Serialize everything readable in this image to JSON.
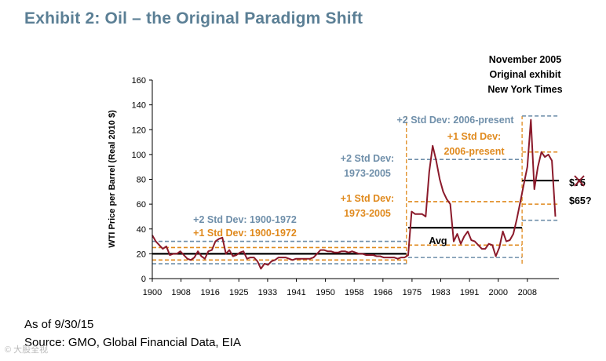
{
  "header": {
    "title": "Exhibit 2: Oil – the Original Paradigm Shift"
  },
  "footer": {
    "as_of": "As of 9/30/15",
    "source": "Source: GMO, Global Financial Data, EIA",
    "watermark": "© 大股全视"
  },
  "chart_data": {
    "type": "line",
    "title": "Exhibit 2: Oil – the Original Paradigm Shift",
    "xlabel": "",
    "ylabel": "WTI Price per Barrel (Real 2010 $)",
    "xlim": [
      1900,
      2016
    ],
    "ylim": [
      0,
      160
    ],
    "yticks": [
      0,
      20,
      40,
      60,
      80,
      100,
      120,
      140,
      160
    ],
    "xticks": [
      "1900",
      "1908",
      "1916",
      "1925",
      "1933",
      "1941",
      "1950",
      "1958",
      "1966",
      "1975",
      "1983",
      "1991",
      "2000",
      "2008"
    ],
    "xtick_years": [
      1900,
      1908.2,
      1916.5,
      1924.7,
      1932.9,
      1941.1,
      1949.4,
      1957.6,
      1965.8,
      1974.1,
      1982.3,
      1990.5,
      1998.7,
      2007
    ],
    "series": [
      {
        "name": "WTI real price",
        "color": "#8b1a2b",
        "x": [
          1900,
          1901,
          1902,
          1903,
          1904,
          1905,
          1906,
          1907,
          1908,
          1909,
          1910,
          1911,
          1912,
          1913,
          1914,
          1915,
          1916,
          1917,
          1918,
          1919,
          1920,
          1921,
          1922,
          1923,
          1924,
          1925,
          1926,
          1927,
          1928,
          1929,
          1930,
          1931,
          1932,
          1933,
          1934,
          1935,
          1936,
          1937,
          1938,
          1939,
          1940,
          1941,
          1942,
          1943,
          1944,
          1945,
          1946,
          1947,
          1948,
          1949,
          1950,
          1951,
          1952,
          1953,
          1954,
          1955,
          1956,
          1957,
          1958,
          1959,
          1960,
          1961,
          1962,
          1963,
          1964,
          1965,
          1966,
          1967,
          1968,
          1969,
          1970,
          1971,
          1972,
          1973,
          1974,
          1975,
          1976,
          1977,
          1978,
          1979,
          1980,
          1981,
          1982,
          1983,
          1984,
          1985,
          1986,
          1987,
          1988,
          1989,
          1990,
          1991,
          1992,
          1993,
          1994,
          1995,
          1996,
          1997,
          1998,
          1999,
          2000,
          2001,
          2002,
          2003,
          2004,
          2005,
          2006,
          2007,
          2008,
          2009,
          2010,
          2011,
          2012,
          2013,
          2014,
          2015
        ],
        "y": [
          35,
          30,
          27,
          24,
          26,
          19,
          20,
          20,
          22,
          19,
          16,
          15,
          17,
          22,
          18,
          16,
          22,
          23,
          30,
          32,
          33,
          20,
          23,
          18,
          19,
          21,
          22,
          16,
          17,
          17,
          14,
          8,
          12,
          11,
          14,
          15,
          17,
          17,
          17,
          16,
          15,
          16,
          16,
          16,
          16,
          16,
          17,
          20,
          23,
          23,
          22,
          22,
          21,
          21,
          22,
          22,
          21,
          22,
          21,
          20,
          20,
          19,
          19,
          19,
          18,
          18,
          17,
          17,
          17,
          17,
          16,
          17,
          17,
          19,
          54,
          52,
          52,
          52,
          50,
          86,
          107,
          95,
          80,
          70,
          64,
          60,
          30,
          36,
          28,
          34,
          38,
          31,
          30,
          27,
          24,
          24,
          28,
          27,
          18,
          25,
          38,
          30,
          31,
          36,
          48,
          62,
          76,
          90,
          128,
          72,
          90,
          102,
          98,
          100,
          95,
          50
        ]
      }
    ],
    "reference_lines": [
      {
        "label": "Avg 1900-1972",
        "y": 20,
        "x_range": [
          1900,
          1972.5
        ],
        "style": "solid",
        "color": "#000000"
      },
      {
        "label": "+1 Std Dev: 1900-1972",
        "y": 25,
        "x_range": [
          1900,
          1972.5
        ],
        "style": "dashed",
        "color": "#e08a1e"
      },
      {
        "label": "+2 Std Dev: 1900-1972",
        "y": 30,
        "x_range": [
          1900,
          1972.5
        ],
        "style": "dashed",
        "color": "#6f8faa"
      },
      {
        "label": "-1 Std Dev: 1900-1972",
        "y": 15,
        "x_range": [
          1900,
          1972.5
        ],
        "style": "dashed",
        "color": "#e08a1e"
      },
      {
        "label": "-2 Std Dev: 1900-1972",
        "y": 12,
        "x_range": [
          1900,
          1972.5
        ],
        "style": "dashed",
        "color": "#6f8faa"
      },
      {
        "label": "Avg 1973-2005",
        "y": 41,
        "x_range": [
          1973,
          2005.5
        ],
        "style": "solid",
        "color": "#000000"
      },
      {
        "label": "+1 Std Dev: 1973-2005",
        "y": 62,
        "x_range": [
          1973,
          2005.5
        ],
        "style": "dashed",
        "color": "#e08a1e"
      },
      {
        "label": "+2 Std Dev: 1973-2005",
        "y": 96,
        "x_range": [
          1973,
          2005.5
        ],
        "style": "dashed",
        "color": "#6f8faa"
      },
      {
        "label": "-1 Std Dev: 1973-2005",
        "y": 27,
        "x_range": [
          1973,
          2005.5
        ],
        "style": "dashed",
        "color": "#e08a1e"
      },
      {
        "label": "-2 Std Dev: 1973-2005",
        "y": 17,
        "x_range": [
          1973,
          2005.5
        ],
        "style": "dashed",
        "color": "#6f8faa"
      },
      {
        "label": "Avg 2006-present",
        "y": 79,
        "x_range": [
          2005.5,
          2016
        ],
        "style": "solid",
        "color": "#000000"
      },
      {
        "label": "+1 Std Dev: 2006-present",
        "y": 102,
        "x_range": [
          2005.5,
          2016
        ],
        "style": "dashed",
        "color": "#e08a1e"
      },
      {
        "label": "+2 Std Dev: 2006-present",
        "y": 131,
        "x_range": [
          2005.5,
          2016
        ],
        "style": "dashed",
        "color": "#6f8faa"
      },
      {
        "label": "-1 Std Dev: 2006-present",
        "y": 60,
        "x_range": [
          2005.5,
          2016
        ],
        "style": "dashed",
        "color": "#e08a1e"
      },
      {
        "label": "-2 Std Dev: 2006-present",
        "y": 47,
        "x_range": [
          2005.5,
          2016
        ],
        "style": "dashed",
        "color": "#6f8faa"
      }
    ],
    "regime_breaks": [
      1972.5,
      2005.5
    ],
    "annotations": [
      {
        "key": "nov2005",
        "lines": [
          "November 2005",
          "Original exhibit",
          "New York Times"
        ],
        "color": "#000000"
      },
      {
        "key": "sd2_1900",
        "lines": [
          "+2 Std Dev: 1900-1972"
        ],
        "color": "#6f8faa"
      },
      {
        "key": "sd1_1900",
        "lines": [
          "+1 Std Dev: 1900-1972"
        ],
        "color": "#e08a1e"
      },
      {
        "key": "sd2_1973",
        "lines": [
          "+2 Std Dev:",
          "1973-2005"
        ],
        "color": "#6f8faa"
      },
      {
        "key": "sd1_1973",
        "lines": [
          "+1 Std Dev:",
          "1973-2005"
        ],
        "color": "#e08a1e"
      },
      {
        "key": "sd2_2006",
        "lines": [
          "+2 Std Dev: 2006-present"
        ],
        "color": "#6f8faa"
      },
      {
        "key": "sd1_2006",
        "lines": [
          "+1 Std Dev:",
          "2006-present"
        ],
        "color": "#e08a1e"
      },
      {
        "key": "avg",
        "lines": [
          "Avg"
        ],
        "color": "#000000"
      },
      {
        "key": "old_target",
        "lines": [
          "$75"
        ],
        "color": "#000000"
      },
      {
        "key": "new_target",
        "lines": [
          "$65?"
        ],
        "color": "#000000"
      }
    ]
  }
}
